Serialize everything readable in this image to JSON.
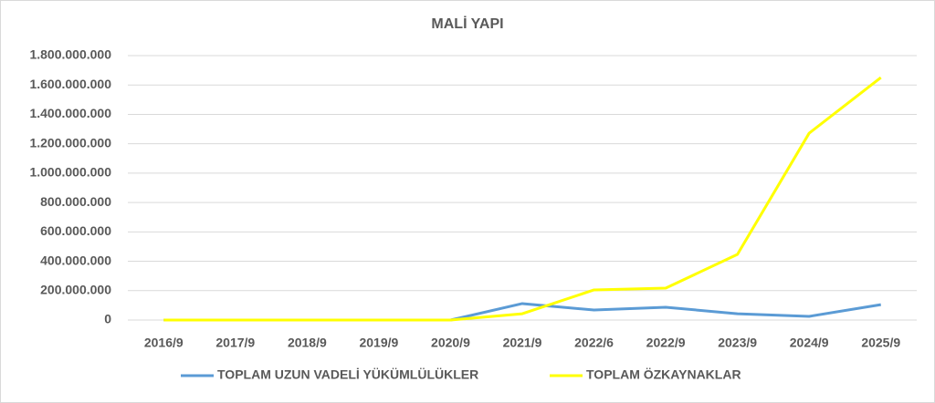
{
  "chart_data": {
    "type": "line",
    "title": "MALİ YAPI",
    "categories": [
      "2016/9",
      "2017/9",
      "2018/9",
      "2019/9",
      "2020/9",
      "2021/9",
      "2022/6",
      "2022/9",
      "2023/9",
      "2024/9",
      "2025/9"
    ],
    "series": [
      {
        "name": "TOPLAM UZUN VADELİ YÜKÜMLÜLÜKLER",
        "color": "#5b9bd5",
        "values": [
          0,
          0,
          0,
          0,
          0,
          112000000,
          68000000,
          87000000,
          43000000,
          25000000,
          105000000
        ]
      },
      {
        "name": "TOPLAM ÖZKAYNAKLAR",
        "color": "#ffff00",
        "values": [
          0,
          0,
          0,
          0,
          0,
          43000000,
          205000000,
          217000000,
          447000000,
          1272000000,
          1651000000
        ]
      }
    ],
    "ylim": [
      0,
      1800000000
    ],
    "yticks": [
      0,
      {
        "value": 200000000,
        "label": "200.000.000"
      },
      {
        "value": 400000000,
        "label": "400.000.000"
      },
      {
        "value": 600000000,
        "label": "600.000.000"
      },
      {
        "value": 800000000,
        "label": "800.000.000"
      },
      {
        "value": 1000000000,
        "label": "1.000.000.000"
      },
      {
        "value": 1200000000,
        "label": "1.200.000.000"
      },
      {
        "value": 1400000000,
        "label": "1.400.000.000"
      },
      {
        "value": 1600000000,
        "label": "1.600.000.000"
      },
      {
        "value": 1800000000,
        "label": "1.800.000.000"
      }
    ],
    "grid": true,
    "legend": "bottom"
  }
}
